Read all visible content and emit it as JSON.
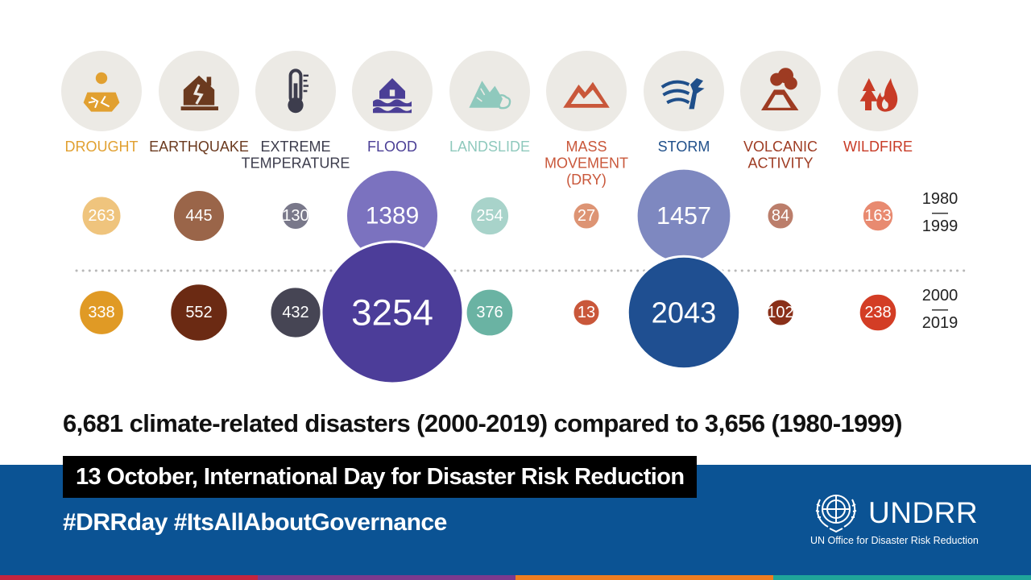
{
  "chart_data": {
    "type": "bubble",
    "categories": [
      "DROUGHT",
      "EARTHQUAKE",
      "EXTREME TEMPERATURE",
      "FLOOD",
      "LANDSLIDE",
      "MASS MOVEMENT (DRY)",
      "STORM",
      "VOLCANIC ACTIVITY",
      "WILDFIRE"
    ],
    "category_label_lines": [
      [
        "DROUGHT"
      ],
      [
        "EARTHQUAKE"
      ],
      [
        "EXTREME",
        "TEMPERATURE"
      ],
      [
        "FLOOD"
      ],
      [
        "LANDSLIDE"
      ],
      [
        "MASS",
        "MOVEMENT",
        "(DRY)"
      ],
      [
        "STORM"
      ],
      [
        "VOLCANIC",
        "ACTIVITY"
      ],
      [
        "WILDFIRE"
      ]
    ],
    "icons": [
      "drought-icon",
      "earthquake-icon",
      "thermometer-icon",
      "flood-icon",
      "landslide-icon",
      "mass-movement-icon",
      "storm-icon",
      "volcano-icon",
      "wildfire-icon"
    ],
    "label_colors": [
      "#e1a030",
      "#6b3a1f",
      "#3d3d4d",
      "#4b3f96",
      "#8fc9bd",
      "#c9573a",
      "#1f4f8a",
      "#9e3b22",
      "#c83b26"
    ],
    "series": [
      {
        "name": "1980 — 1999",
        "period_lines": [
          "1980",
          "—",
          "1999"
        ],
        "values": [
          263,
          445,
          130,
          1389,
          254,
          27,
          1457,
          84,
          163
        ],
        "colors": [
          "#efc47d",
          "#9a6549",
          "#79788a",
          "#7b72bf",
          "#a8d3ca",
          "#dd9474",
          "#7e88c0",
          "#bb7e6b",
          "#e88a70"
        ]
      },
      {
        "name": "2000 — 2019",
        "period_lines": [
          "2000",
          "—",
          "2019"
        ],
        "values": [
          338,
          552,
          432,
          3254,
          376,
          13,
          2043,
          102,
          238
        ],
        "colors": [
          "#e09a25",
          "#6b2a13",
          "#464554",
          "#4c3d99",
          "#6ab3a3",
          "#c9573a",
          "#1f4f91",
          "#8a3019",
          "#d33d25"
        ]
      }
    ]
  },
  "headline": "6,681 climate-related disasters (2000-2019) compared to 3,656 (1980-1999)",
  "footer": {
    "event": "13 October, International Day for Disaster Risk Reduction",
    "hashtags": "#DRRday #ItsAllAboutGovernance",
    "logo_name": "UNDRR",
    "logo_subtitle": "UN Office for Disaster Risk Reduction",
    "background_color": "#0b5394",
    "stripe_colors": [
      "#c4253f",
      "#7c3a8e",
      "#ef7d20",
      "#1fa59a"
    ]
  }
}
